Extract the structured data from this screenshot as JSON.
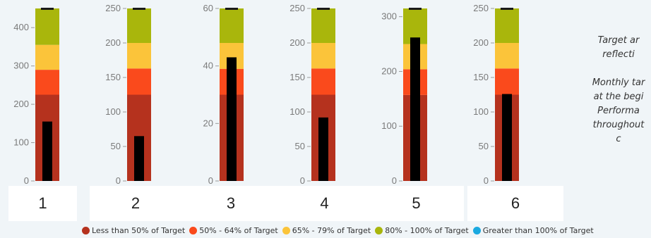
{
  "chart_data": {
    "type": "bar",
    "subtype": "bullet",
    "band_colors": [
      "#b5321e",
      "#fa4a1c",
      "#fbc43a",
      "#a9b60c"
    ],
    "bar_color": "#000000",
    "target_color": "#1a1a1a",
    "charts": [
      {
        "label": "1",
        "ymax": 450,
        "ticks": [
          0,
          100,
          200,
          300,
          400
        ],
        "bands": [
          225,
          290,
          355,
          450
        ],
        "value": 155,
        "target": 450
      },
      {
        "label": "2",
        "ymax": 250,
        "ticks": [
          0,
          50,
          100,
          150,
          200,
          250
        ],
        "bands": [
          125,
          163,
          200,
          250
        ],
        "value": 65,
        "target": 250
      },
      {
        "label": "3",
        "ymax": 60,
        "ticks": [
          0,
          20,
          40,
          60
        ],
        "bands": [
          30,
          39,
          48,
          60
        ],
        "value": 43,
        "target": 60
      },
      {
        "label": "4",
        "ymax": 250,
        "ticks": [
          0,
          50,
          100,
          150,
          200,
          250
        ],
        "bands": [
          125,
          163,
          200,
          250
        ],
        "value": 92,
        "target": 250
      },
      {
        "label": "5",
        "ymax": 315,
        "ticks": [
          0,
          100,
          200,
          300
        ],
        "bands": [
          157,
          204,
          250,
          315
        ],
        "value": 262,
        "target": 315
      },
      {
        "label": "6",
        "ymax": 250,
        "ticks": [
          0,
          50,
          100,
          150,
          200,
          250
        ],
        "bands": [
          125,
          163,
          200,
          250
        ],
        "value": 126,
        "target": 250
      }
    ],
    "legend": [
      {
        "label": "Less than 50% of Target",
        "color": "#b5321e"
      },
      {
        "label": "50% - 64% of Target",
        "color": "#fa4a1c"
      },
      {
        "label": "65% - 79% of Target",
        "color": "#fbc43a"
      },
      {
        "label": "80% - 100% of Target",
        "color": "#a9b60c"
      },
      {
        "label": "Greater than 100% of Target",
        "color": "#1aa9e0"
      }
    ]
  },
  "note": {
    "line1": "Target ar",
    "line2": "reflecti",
    "line3": "Monthly tar",
    "line4": "at the begi",
    "line5": "Performa",
    "line6": "throughout",
    "line7": "c"
  }
}
